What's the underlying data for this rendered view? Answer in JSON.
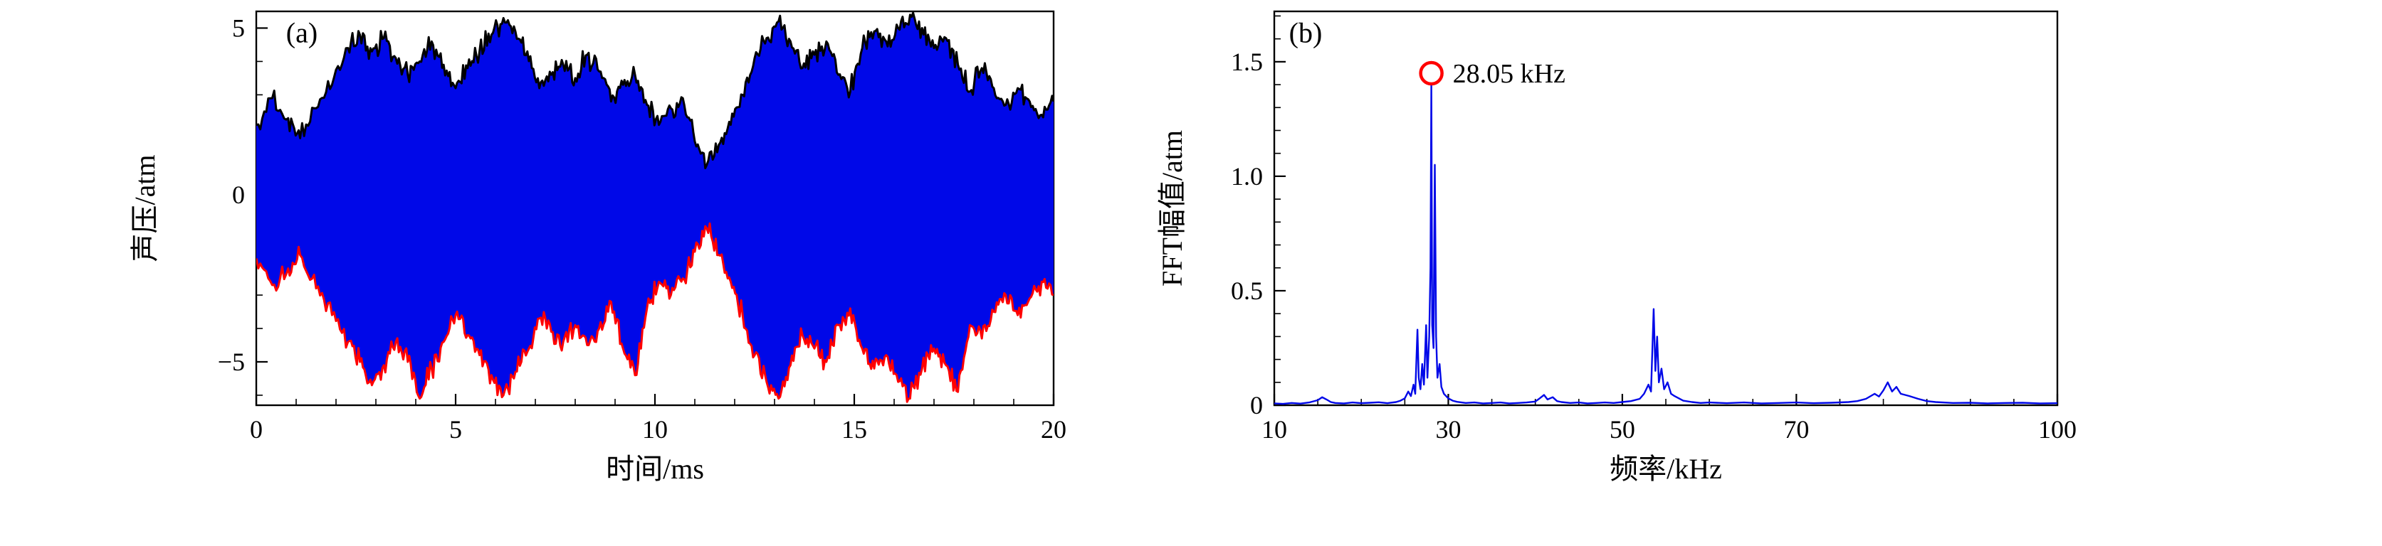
{
  "figure": {
    "background": "#ffffff"
  },
  "chart_data": [
    {
      "id": "waveform",
      "type": "area",
      "panel_label": "(a)",
      "xlabel": "时间/ms",
      "ylabel": "声压/atm",
      "xlim": [
        0,
        20
      ],
      "ylim": [
        -6.3,
        5.5
      ],
      "xticks": [
        [
          0,
          "0"
        ],
        [
          5,
          "5"
        ],
        [
          10,
          "10"
        ],
        [
          15,
          "15"
        ],
        [
          20,
          "20"
        ]
      ],
      "yticks": [
        [
          -5,
          "−5"
        ],
        [
          0,
          "0"
        ],
        [
          5,
          "5"
        ]
      ],
      "x_minor_step": 1,
      "y_minor_step": 1,
      "colors": {
        "fill": "#0008e8",
        "upper": "#000000",
        "lower": "#ff0000"
      },
      "noise": {
        "seed": 20250518,
        "roughness": 0.25,
        "subdiv": 8
      },
      "upper_envelope": [
        [
          0,
          2.1
        ],
        [
          0.4,
          2.9
        ],
        [
          0.8,
          2.3
        ],
        [
          1.1,
          1.7
        ],
        [
          1.5,
          2.6
        ],
        [
          1.9,
          3.3
        ],
        [
          2.3,
          4.4
        ],
        [
          2.6,
          4.8
        ],
        [
          2.9,
          4.3
        ],
        [
          3.2,
          4.7
        ],
        [
          3.5,
          4.1
        ],
        [
          3.8,
          3.6
        ],
        [
          4.1,
          4.0
        ],
        [
          4.4,
          4.6
        ],
        [
          4.7,
          3.9
        ],
        [
          5.0,
          3.2
        ],
        [
          5.3,
          3.8
        ],
        [
          5.6,
          4.3
        ],
        [
          5.9,
          4.8
        ],
        [
          6.2,
          5.3
        ],
        [
          6.5,
          4.9
        ],
        [
          6.8,
          4.3
        ],
        [
          7.1,
          3.2
        ],
        [
          7.4,
          3.6
        ],
        [
          7.7,
          3.9
        ],
        [
          8.0,
          3.5
        ],
        [
          8.3,
          4.2
        ],
        [
          8.6,
          3.7
        ],
        [
          8.9,
          2.8
        ],
        [
          9.2,
          3.3
        ],
        [
          9.5,
          3.6
        ],
        [
          9.8,
          2.7
        ],
        [
          10.1,
          2.1
        ],
        [
          10.4,
          2.6
        ],
        [
          10.7,
          2.9
        ],
        [
          11.0,
          1.6
        ],
        [
          11.3,
          0.9
        ],
        [
          11.6,
          1.5
        ],
        [
          11.9,
          2.1
        ],
        [
          12.2,
          3.0
        ],
        [
          12.5,
          4.1
        ],
        [
          12.8,
          4.7
        ],
        [
          13.1,
          5.2
        ],
        [
          13.4,
          4.6
        ],
        [
          13.7,
          3.8
        ],
        [
          14.0,
          4.2
        ],
        [
          14.3,
          4.6
        ],
        [
          14.6,
          3.6
        ],
        [
          14.9,
          3.1
        ],
        [
          15.2,
          4.4
        ],
        [
          15.5,
          4.9
        ],
        [
          15.8,
          4.6
        ],
        [
          16.1,
          5.0
        ],
        [
          16.4,
          5.4
        ],
        [
          16.7,
          5.0
        ],
        [
          17.0,
          4.4
        ],
        [
          17.3,
          4.7
        ],
        [
          17.6,
          3.9
        ],
        [
          17.9,
          3.1
        ],
        [
          18.2,
          3.8
        ],
        [
          18.5,
          3.2
        ],
        [
          18.8,
          2.7
        ],
        [
          19.1,
          3.2
        ],
        [
          19.4,
          2.8
        ],
        [
          19.7,
          2.4
        ],
        [
          20,
          2.8
        ]
      ],
      "lower_envelope": [
        [
          0,
          -1.9
        ],
        [
          0.4,
          -2.7
        ],
        [
          0.8,
          -2.2
        ],
        [
          1.1,
          -1.8
        ],
        [
          1.5,
          -2.8
        ],
        [
          1.9,
          -3.6
        ],
        [
          2.3,
          -4.4
        ],
        [
          2.6,
          -5.0
        ],
        [
          2.9,
          -5.7
        ],
        [
          3.2,
          -5.1
        ],
        [
          3.5,
          -4.4
        ],
        [
          3.8,
          -5.0
        ],
        [
          4.1,
          -6.1
        ],
        [
          4.4,
          -5.2
        ],
        [
          4.7,
          -4.4
        ],
        [
          5.0,
          -3.6
        ],
        [
          5.3,
          -4.2
        ],
        [
          5.6,
          -4.8
        ],
        [
          5.9,
          -5.4
        ],
        [
          6.2,
          -6.0
        ],
        [
          6.5,
          -5.3
        ],
        [
          6.8,
          -4.7
        ],
        [
          7.1,
          -3.7
        ],
        [
          7.4,
          -4.1
        ],
        [
          7.7,
          -4.4
        ],
        [
          8.0,
          -3.9
        ],
        [
          8.3,
          -4.5
        ],
        [
          8.6,
          -4.0
        ],
        [
          8.9,
          -3.2
        ],
        [
          9.2,
          -4.6
        ],
        [
          9.5,
          -5.4
        ],
        [
          9.8,
          -3.4
        ],
        [
          10.1,
          -2.6
        ],
        [
          10.4,
          -3.0
        ],
        [
          10.7,
          -2.5
        ],
        [
          11.0,
          -1.7
        ],
        [
          11.3,
          -1.0
        ],
        [
          11.6,
          -1.8
        ],
        [
          11.9,
          -2.6
        ],
        [
          12.2,
          -3.6
        ],
        [
          12.5,
          -4.8
        ],
        [
          12.8,
          -5.6
        ],
        [
          13.1,
          -6.1
        ],
        [
          13.4,
          -5.1
        ],
        [
          13.7,
          -4.2
        ],
        [
          14.0,
          -4.6
        ],
        [
          14.3,
          -5.0
        ],
        [
          14.6,
          -3.9
        ],
        [
          14.9,
          -3.4
        ],
        [
          15.2,
          -4.6
        ],
        [
          15.5,
          -5.2
        ],
        [
          15.8,
          -4.8
        ],
        [
          16.1,
          -5.6
        ],
        [
          16.4,
          -6.1
        ],
        [
          16.7,
          -5.2
        ],
        [
          17.0,
          -4.6
        ],
        [
          17.3,
          -5.1
        ],
        [
          17.6,
          -5.9
        ],
        [
          17.9,
          -3.9
        ],
        [
          18.2,
          -4.3
        ],
        [
          18.5,
          -3.5
        ],
        [
          18.8,
          -3.0
        ],
        [
          19.1,
          -3.6
        ],
        [
          19.4,
          -3.1
        ],
        [
          19.7,
          -2.6
        ],
        [
          20,
          -3.0
        ]
      ]
    },
    {
      "id": "fft",
      "type": "line",
      "panel_label": "(b)",
      "xlabel": "频率/kHz",
      "ylabel": "FFT幅值/atm",
      "xlim": [
        10,
        100
      ],
      "ylim": [
        0,
        1.72
      ],
      "xticks": [
        [
          10,
          "10"
        ],
        [
          30,
          "30"
        ],
        [
          50,
          "50"
        ],
        [
          70,
          "70"
        ],
        [
          100,
          "100"
        ]
      ],
      "yticks": [
        [
          0,
          "0"
        ],
        [
          0.5,
          "0.5"
        ],
        [
          1,
          "1.0"
        ],
        [
          1.5,
          "1.5"
        ]
      ],
      "x_minor_step": 5,
      "y_minor_step": 0.1,
      "colors": {
        "line": "#0008e8",
        "marker": "#ff0000"
      },
      "annotation": {
        "text": "28.05 kHz",
        "x": 28.05,
        "y": 1.45,
        "marker": "red-circle"
      },
      "points": [
        [
          10,
          0.008
        ],
        [
          11,
          0.006
        ],
        [
          12,
          0.01
        ],
        [
          13,
          0.007
        ],
        [
          14,
          0.012
        ],
        [
          15,
          0.022
        ],
        [
          15.5,
          0.035
        ],
        [
          16,
          0.025
        ],
        [
          16.5,
          0.014
        ],
        [
          17,
          0.01
        ],
        [
          18,
          0.008
        ],
        [
          19,
          0.012
        ],
        [
          20,
          0.009
        ],
        [
          21,
          0.011
        ],
        [
          22,
          0.013
        ],
        [
          23,
          0.009
        ],
        [
          24,
          0.014
        ],
        [
          24.5,
          0.02
        ],
        [
          25,
          0.03
        ],
        [
          25.4,
          0.06
        ],
        [
          25.7,
          0.04
        ],
        [
          26,
          0.09
        ],
        [
          26.2,
          0.05
        ],
        [
          26.45,
          0.33
        ],
        [
          26.6,
          0.12
        ],
        [
          26.8,
          0.07
        ],
        [
          27,
          0.18
        ],
        [
          27.2,
          0.09
        ],
        [
          27.45,
          0.35
        ],
        [
          27.6,
          0.12
        ],
        [
          27.8,
          0.3
        ],
        [
          27.95,
          0.6
        ],
        [
          28.05,
          1.4
        ],
        [
          28.15,
          0.35
        ],
        [
          28.3,
          0.25
        ],
        [
          28.45,
          1.05
        ],
        [
          28.6,
          0.3
        ],
        [
          28.75,
          0.12
        ],
        [
          29,
          0.18
        ],
        [
          29.2,
          0.08
        ],
        [
          29.5,
          0.05
        ],
        [
          30,
          0.03
        ],
        [
          30.5,
          0.02
        ],
        [
          31,
          0.015
        ],
        [
          32,
          0.01
        ],
        [
          33,
          0.012
        ],
        [
          34,
          0.008
        ],
        [
          35,
          0.01
        ],
        [
          36,
          0.012
        ],
        [
          37,
          0.008
        ],
        [
          38,
          0.01
        ],
        [
          39,
          0.012
        ],
        [
          40,
          0.016
        ],
        [
          40.5,
          0.03
        ],
        [
          41,
          0.045
        ],
        [
          41.4,
          0.025
        ],
        [
          42,
          0.035
        ],
        [
          42.5,
          0.018
        ],
        [
          43,
          0.014
        ],
        [
          44,
          0.01
        ],
        [
          45,
          0.012
        ],
        [
          46,
          0.008
        ],
        [
          47,
          0.01
        ],
        [
          48,
          0.012
        ],
        [
          49,
          0.01
        ],
        [
          50,
          0.014
        ],
        [
          51,
          0.018
        ],
        [
          52,
          0.028
        ],
        [
          52.5,
          0.05
        ],
        [
          53,
          0.09
        ],
        [
          53.3,
          0.06
        ],
        [
          53.6,
          0.42
        ],
        [
          53.8,
          0.15
        ],
        [
          54,
          0.3
        ],
        [
          54.2,
          0.1
        ],
        [
          54.5,
          0.16
        ],
        [
          54.8,
          0.07
        ],
        [
          55.2,
          0.1
        ],
        [
          55.6,
          0.05
        ],
        [
          56,
          0.04
        ],
        [
          57,
          0.02
        ],
        [
          58,
          0.014
        ],
        [
          59,
          0.01
        ],
        [
          60,
          0.012
        ],
        [
          62,
          0.009
        ],
        [
          64,
          0.012
        ],
        [
          66,
          0.008
        ],
        [
          68,
          0.01
        ],
        [
          70,
          0.012
        ],
        [
          72,
          0.009
        ],
        [
          74,
          0.011
        ],
        [
          76,
          0.014
        ],
        [
          77,
          0.018
        ],
        [
          78,
          0.028
        ],
        [
          79,
          0.05
        ],
        [
          79.5,
          0.038
        ],
        [
          80,
          0.065
        ],
        [
          80.5,
          0.1
        ],
        [
          81,
          0.06
        ],
        [
          81.5,
          0.08
        ],
        [
          82,
          0.05
        ],
        [
          83,
          0.04
        ],
        [
          84,
          0.028
        ],
        [
          85,
          0.018
        ],
        [
          86,
          0.014
        ],
        [
          88,
          0.01
        ],
        [
          90,
          0.011
        ],
        [
          92,
          0.008
        ],
        [
          94,
          0.01
        ],
        [
          96,
          0.011
        ],
        [
          98,
          0.008
        ],
        [
          100,
          0.009
        ]
      ]
    }
  ]
}
